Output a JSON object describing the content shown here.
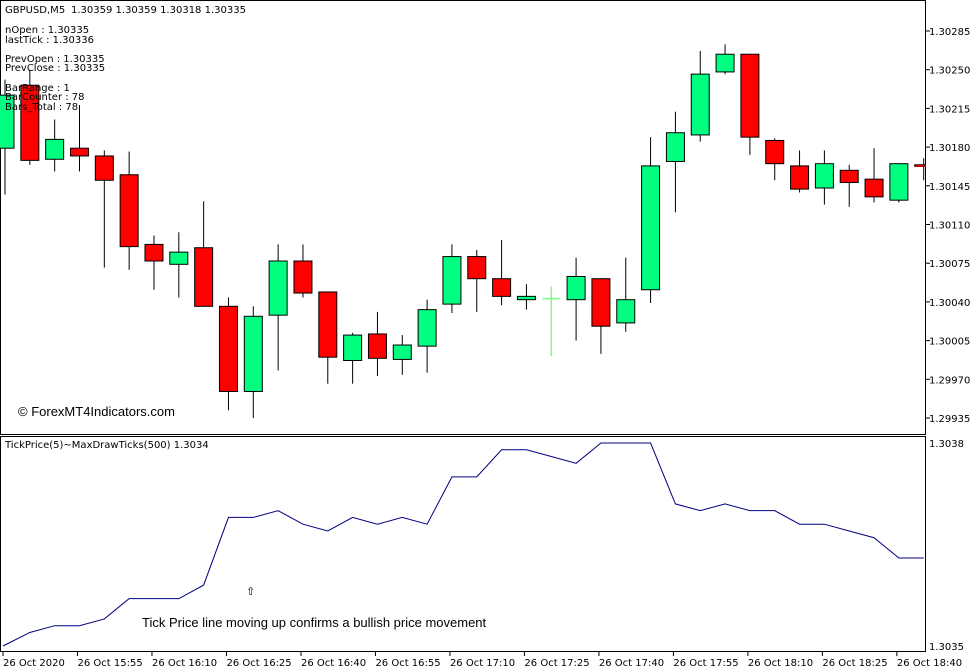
{
  "header": {
    "symbol": "GBPUSD,M5",
    "ohlc": "1.30359 1.30359 1.30318 1.30335"
  },
  "info_lines": [
    "nOpen : 1.30335",
    "lastTick : 1.30336",
    "",
    "PrevOpen : 1.30335",
    "PrevClose : 1.30335",
    "",
    "BarRange : 1",
    "BarCounter : 78",
    "Bars_Total : 78"
  ],
  "watermark": "© ForexMT4Indicators.com",
  "indicator_label": "TickPrice(5)~MaxDrawTicks(500) 1.3034",
  "annotation": {
    "arrow": "⇧",
    "text": "Tick Price line moving up confirms a bullish price movement"
  },
  "colors": {
    "bull": "#00ff80",
    "bear": "#ff0000",
    "current": "#80ff80",
    "line": "#000080"
  },
  "chart_data": [
    {
      "type": "candlestick",
      "title": "GBPUSD,M5",
      "ylim": [
        1.2992,
        1.303
      ],
      "yticks": [
        "1.30285",
        "1.30250",
        "1.30215",
        "1.30180",
        "1.30145",
        "1.30110",
        "1.30075",
        "1.30040",
        "1.30005",
        "1.29970",
        "1.29935"
      ],
      "ohlc": [
        [
          1.30179,
          1.30241,
          1.30137,
          1.30227
        ],
        [
          1.30236,
          1.3025,
          1.30164,
          1.30168
        ],
        [
          1.30169,
          1.30205,
          1.30158,
          1.30187
        ],
        [
          1.30179,
          1.30218,
          1.30158,
          1.30172
        ],
        [
          1.30172,
          1.30177,
          1.30071,
          1.3015
        ],
        [
          1.30155,
          1.30176,
          1.30069,
          1.3009
        ],
        [
          1.30092,
          1.301,
          1.30051,
          1.30077
        ],
        [
          1.30074,
          1.30103,
          1.30044,
          1.30085
        ],
        [
          1.30089,
          1.30131,
          1.30036,
          1.30036
        ],
        [
          1.30036,
          1.30044,
          1.29942,
          1.29959
        ],
        [
          1.29959,
          1.30036,
          1.29935,
          1.30027
        ],
        [
          1.30028,
          1.30092,
          1.29978,
          1.30077
        ],
        [
          1.30077,
          1.30092,
          1.30044,
          1.30048
        ],
        [
          1.30049,
          1.30049,
          1.29966,
          1.2999
        ],
        [
          1.29987,
          1.30012,
          1.29966,
          1.3001
        ],
        [
          1.30011,
          1.30031,
          1.29973,
          1.29989
        ],
        [
          1.29988,
          1.3001,
          1.29974,
          1.30001
        ],
        [
          1.3,
          1.30042,
          1.29976,
          1.30033
        ],
        [
          1.30038,
          1.30092,
          1.3003,
          1.30081
        ],
        [
          1.30081,
          1.30087,
          1.30031,
          1.30061
        ],
        [
          1.30061,
          1.30096,
          1.30037,
          1.30045
        ],
        [
          1.30042,
          1.30056,
          1.30033,
          1.30045
        ],
        [
          1.30043,
          1.30054,
          1.29991,
          1.30043
        ],
        [
          1.30042,
          1.3008,
          1.30005,
          1.30063
        ],
        [
          1.30061,
          1.30061,
          1.29993,
          1.30018
        ],
        [
          1.30021,
          1.3008,
          1.30013,
          1.30042
        ],
        [
          1.30051,
          1.30189,
          1.30039,
          1.30163
        ],
        [
          1.30167,
          1.30212,
          1.30121,
          1.30193
        ],
        [
          1.30191,
          1.30267,
          1.30185,
          1.30246
        ],
        [
          1.30248,
          1.30273,
          1.30246,
          1.30264
        ],
        [
          1.30264,
          1.30264,
          1.30173,
          1.30189
        ],
        [
          1.30186,
          1.30188,
          1.3015,
          1.30165
        ],
        [
          1.30163,
          1.30177,
          1.30139,
          1.30142
        ],
        [
          1.30143,
          1.30177,
          1.30128,
          1.30165
        ],
        [
          1.30159,
          1.30164,
          1.30126,
          1.30148
        ],
        [
          1.30151,
          1.30179,
          1.3013,
          1.30135
        ],
        [
          1.30132,
          1.30165,
          1.3013,
          1.30165
        ],
        [
          1.30164,
          1.3017,
          1.3015,
          1.30163
        ]
      ],
      "current_bar_index": 22
    },
    {
      "type": "line",
      "title": "TickPrice(5)~MaxDrawTicks(500)",
      "yticks": [
        "1.3038",
        "1.3035"
      ],
      "values": [
        1.3035,
        1.30352,
        1.30353,
        1.30353,
        1.30354,
        1.30357,
        1.30357,
        1.30357,
        1.30359,
        1.30369,
        1.30369,
        1.3037,
        1.30368,
        1.30367,
        1.30369,
        1.30368,
        1.30369,
        1.30368,
        1.30375,
        1.30375,
        1.30379,
        1.30379,
        1.30378,
        1.30377,
        1.3038,
        1.3038,
        1.3038,
        1.30371,
        1.3037,
        1.30371,
        1.3037,
        1.3037,
        1.30368,
        1.30368,
        1.30367,
        1.30366,
        1.30363,
        1.30363
      ]
    }
  ],
  "xticks": [
    "26 Oct 2020",
    "26 Oct 15:55",
    "26 Oct 16:10",
    "26 Oct 16:25",
    "26 Oct 16:40",
    "26 Oct 16:55",
    "26 Oct 17:10",
    "26 Oct 17:25",
    "26 Oct 17:40",
    "26 Oct 17:55",
    "26 Oct 18:10",
    "26 Oct 18:25",
    "26 Oct 18:40"
  ]
}
